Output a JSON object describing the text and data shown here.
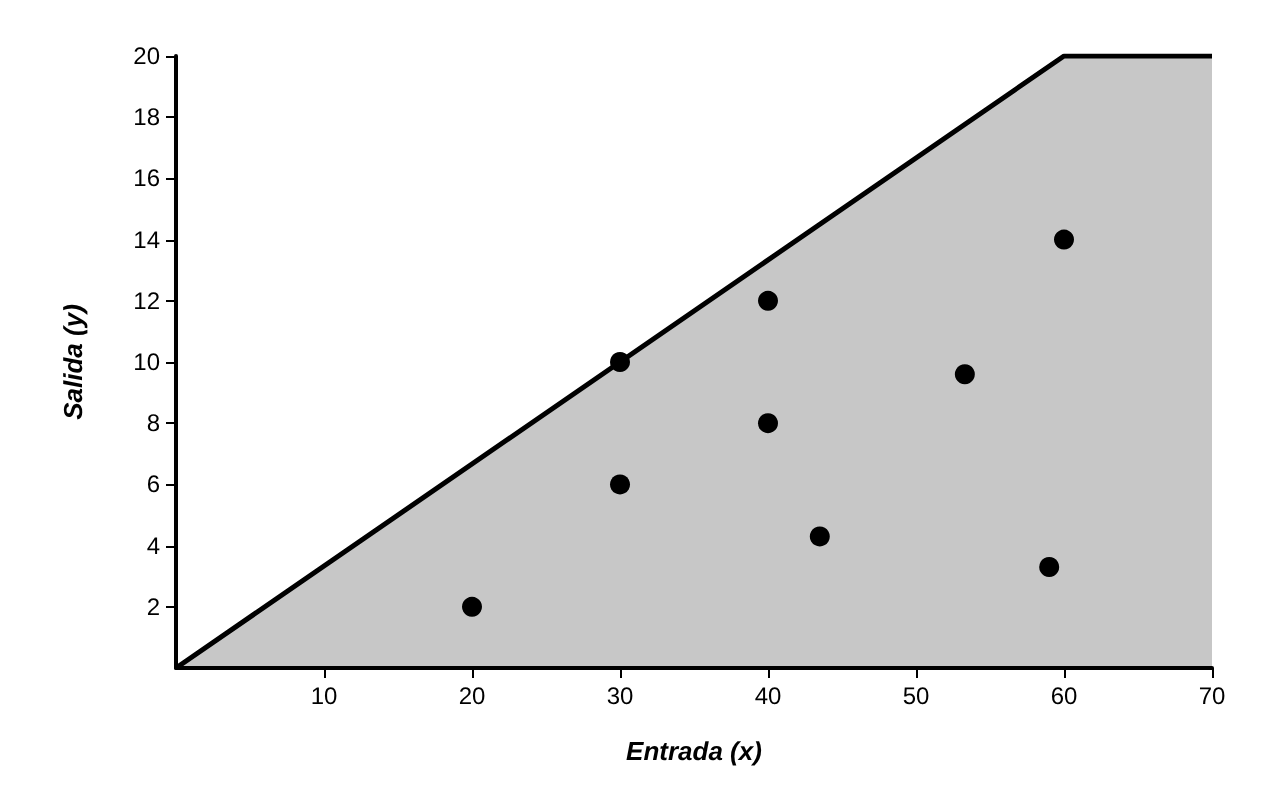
{
  "chart_data": {
    "type": "scatter",
    "xlabel": "Entrada (x)",
    "ylabel": "Salida (y)",
    "xlim": [
      0,
      70
    ],
    "ylim": [
      0,
      20
    ],
    "xticks": [
      10,
      20,
      30,
      40,
      50,
      60,
      70
    ],
    "yticks": [
      2,
      4,
      6,
      8,
      10,
      12,
      14,
      16,
      18,
      20
    ],
    "grid": false,
    "series": [
      {
        "type": "area",
        "color": "#000000",
        "x": [
          0,
          60,
          70
        ],
        "values": [
          0,
          20,
          20
        ]
      },
      {
        "marker": "circle",
        "color": "#000000",
        "x": [
          20,
          30,
          30,
          40,
          40,
          43.5,
          53.3,
          59,
          60
        ],
        "values": [
          2,
          10,
          6,
          12,
          8,
          4.3,
          9.6,
          3.3,
          14
        ]
      }
    ]
  }
}
